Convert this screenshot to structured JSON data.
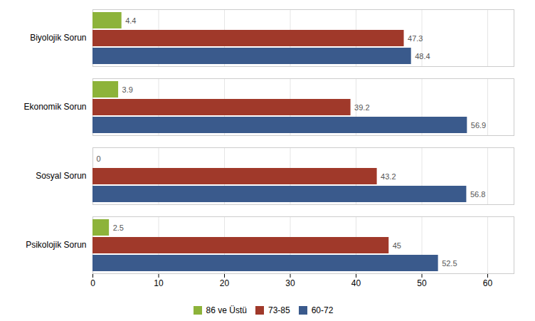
{
  "chart_data": {
    "type": "bar",
    "orientation": "horizontal",
    "categories": [
      "Psikolojik Sorun",
      "Sosyal Sorun",
      "Ekonomik Sorun",
      "Biyolojik Sorun"
    ],
    "series": [
      {
        "name": "86 ve Üstü",
        "color": "#8DB33A",
        "values": [
          2.5,
          0,
          3.9,
          4.4
        ]
      },
      {
        "name": "73-85",
        "color": "#A0392A",
        "values": [
          45,
          43.2,
          39.2,
          47.3
        ]
      },
      {
        "name": "60-72",
        "color": "#3A5A8C",
        "values": [
          52.5,
          56.8,
          56.9,
          48.4
        ]
      }
    ],
    "xlim": [
      0,
      64
    ],
    "xticks": [
      0,
      10,
      20,
      30,
      40,
      50,
      60
    ],
    "grid": true,
    "legend": "bottom",
    "data_labels": true
  }
}
